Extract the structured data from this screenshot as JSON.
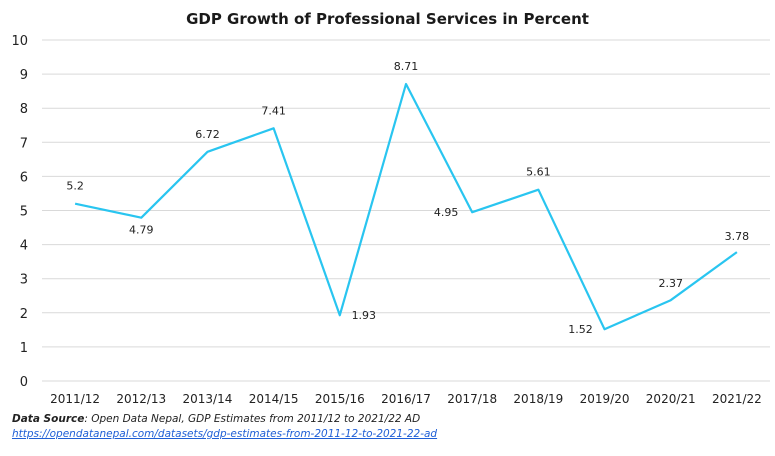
{
  "chart_data": {
    "type": "line",
    "title": "GDP Growth of Professional Services in Percent",
    "xlabel": "",
    "ylabel": "",
    "ylim": [
      0,
      10
    ],
    "yticks": [
      0,
      1,
      2,
      3,
      4,
      5,
      6,
      7,
      8,
      9,
      10
    ],
    "categories": [
      "2011/12",
      "2012/13",
      "2013/14",
      "2014/15",
      "2015/16",
      "2016/17",
      "2017/18",
      "2018/19",
      "2019/20",
      "2020/21",
      "2021/22"
    ],
    "series": [
      {
        "values": [
          5.2,
          4.79,
          6.72,
          7.41,
          1.93,
          8.71,
          4.95,
          5.61,
          1.52,
          2.37,
          3.78
        ],
        "labels": [
          "5.2",
          "4.79",
          "6.72",
          "7.41",
          "1.93",
          "8.71",
          "4.95",
          "5.61",
          "1.52",
          "2.37",
          "3.78"
        ],
        "color": "#29C5F0"
      }
    ],
    "grid": true,
    "legend": "none"
  },
  "footer": {
    "source_label": "Data Source",
    "source_text": ": Open Data Nepal,  GDP Estimates from 2011/12 to 2021/22 AD",
    "source_url": "https://opendatanepal.com/datasets/gdp-estimates-from-2011-12-to-2021-22-ad"
  },
  "colors": {
    "line": "#29C5F0",
    "grid": "#d9d9d9",
    "text": "#222222"
  }
}
